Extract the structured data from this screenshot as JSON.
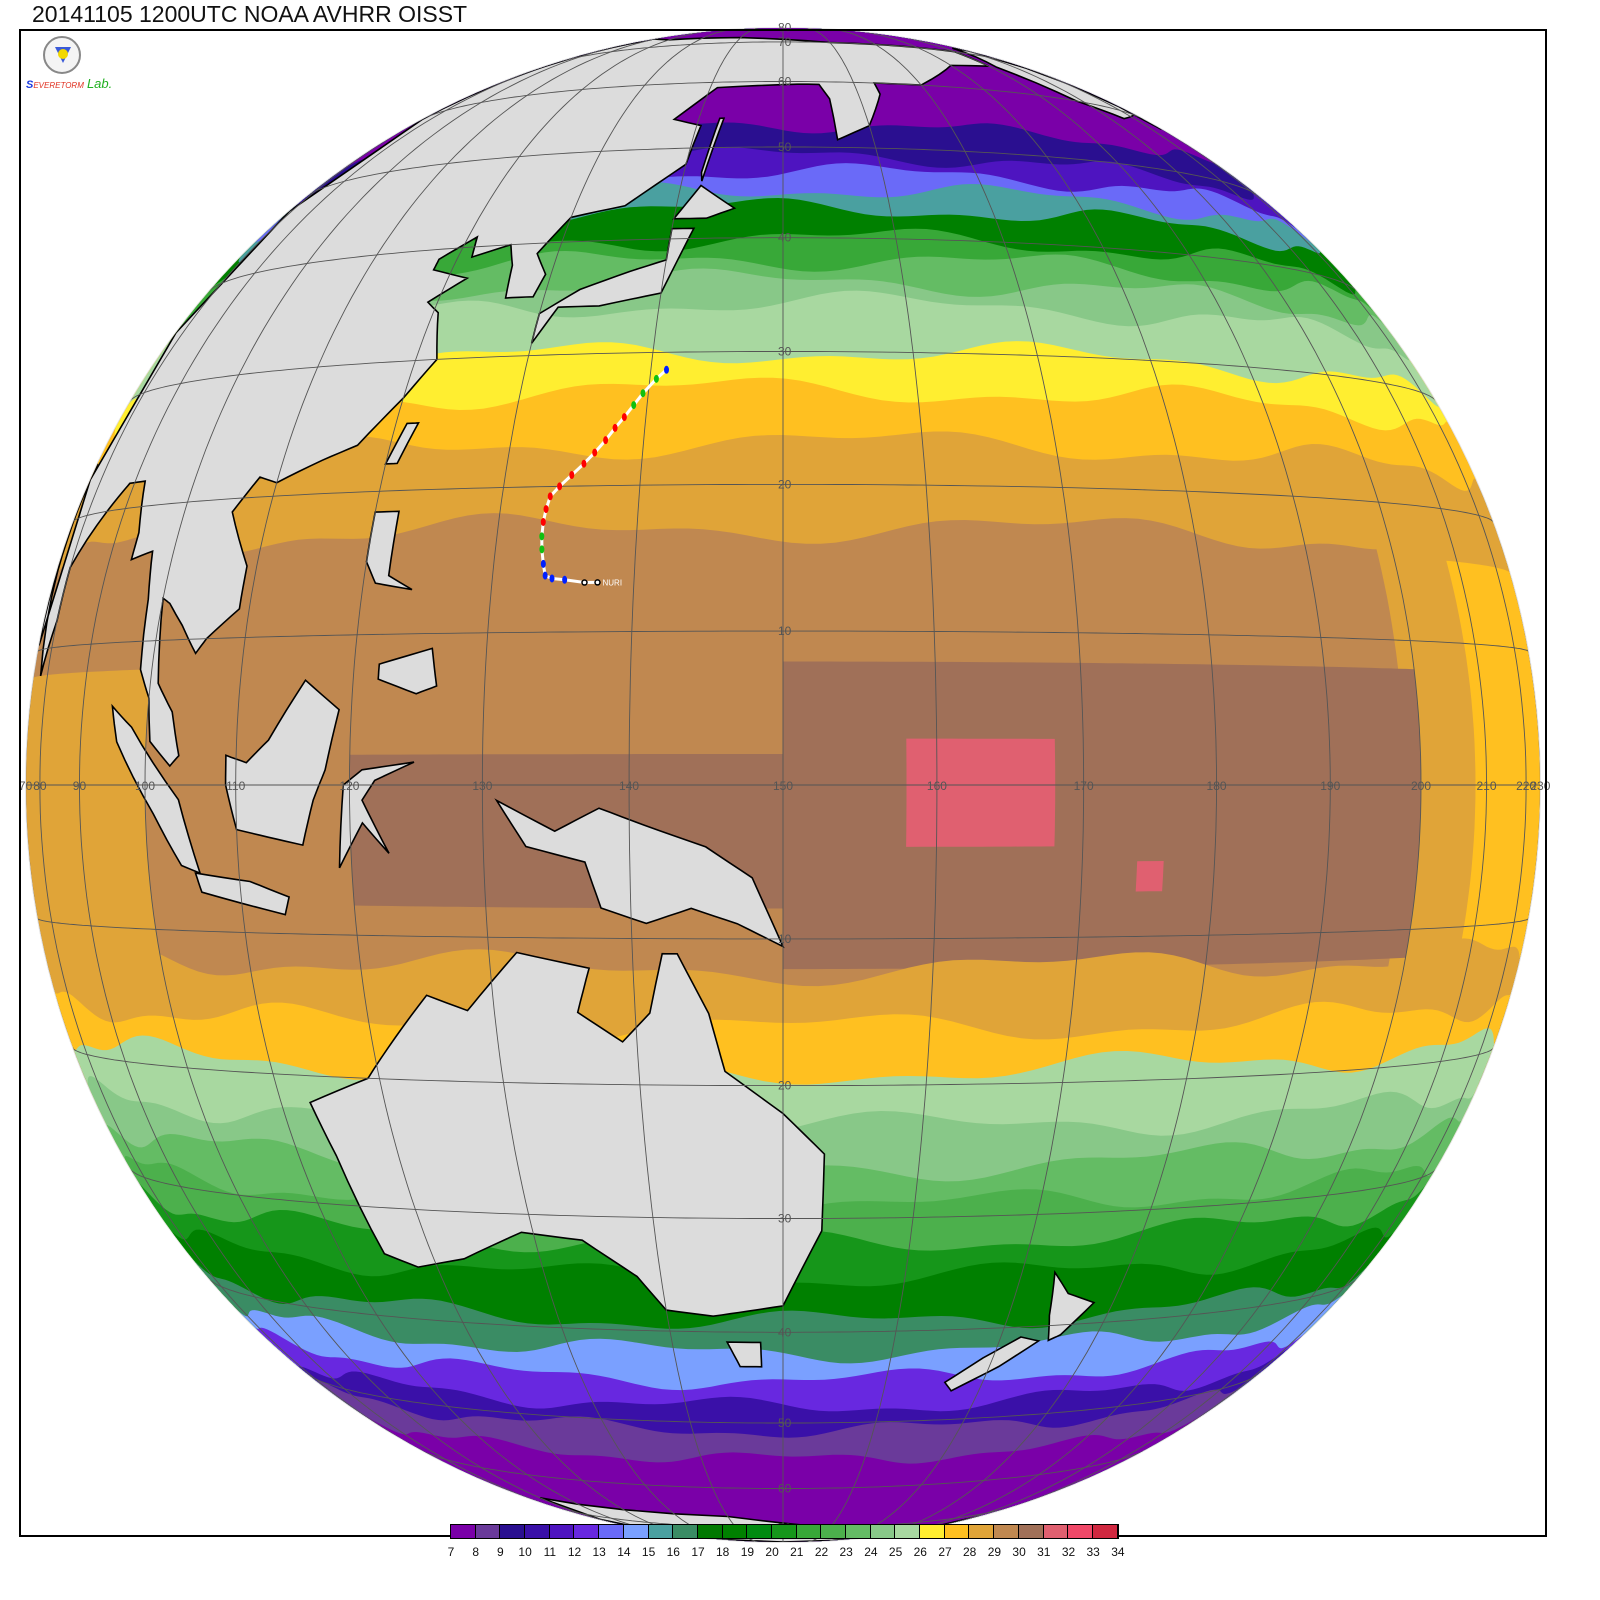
{
  "title": "20141105 1200UTC NOAA AVHRR OISST",
  "logo": {
    "line1": "S",
    "line2": "EVERE",
    "line3": "TORM",
    "line4": "Lab."
  },
  "colorbar": {
    "labels": [
      "7",
      "8",
      "9",
      "10",
      "11",
      "12",
      "13",
      "14",
      "15",
      "16",
      "17",
      "18",
      "19",
      "20",
      "21",
      "22",
      "23",
      "24",
      "25",
      "26",
      "27",
      "28",
      "29",
      "30",
      "31",
      "32",
      "33",
      "34"
    ],
    "colors": [
      "#7a00a8",
      "#6a3a9a",
      "#2a0f90",
      "#3a10a8",
      "#4e14c0",
      "#6828e0",
      "#6a6af8",
      "#7aa0ff",
      "#4aa0a0",
      "#3a8c64",
      "#007800",
      "#008000",
      "#008a10",
      "#16961a",
      "#38a838",
      "#4cb04c",
      "#64bc64",
      "#88c888",
      "#a8d8a0",
      "#ffee30",
      "#ffc020",
      "#e0a438",
      "#c08850",
      "#a07058",
      "#e06070",
      "#f04868",
      "#d02840"
    ]
  },
  "map": {
    "land_color": "#dcdcdc",
    "grid_color": "#555555",
    "lat_labels": [
      "80",
      "70",
      "60",
      "50",
      "40",
      "30",
      "20",
      "10",
      "10",
      "20",
      "30",
      "40",
      "50",
      "60",
      "70"
    ],
    "lat_values": [
      80,
      70,
      60,
      50,
      40,
      30,
      20,
      10,
      -10,
      -20,
      -30,
      -40,
      -50,
      -60,
      -70
    ],
    "lon_labels": [
      "70",
      "80",
      "90",
      "100",
      "110",
      "120",
      "130",
      "140",
      "150",
      "160",
      "170",
      "180",
      "190",
      "200",
      "210",
      "220",
      "230"
    ],
    "lon_values": [
      70,
      80,
      90,
      100,
      110,
      120,
      130,
      140,
      150,
      160,
      170,
      180,
      190,
      200,
      210,
      220,
      230
    ]
  },
  "track": {
    "name": "NURI",
    "points": [
      [
        137.5,
        13.3,
        "#000000"
      ],
      [
        136.6,
        13.3,
        "#000000"
      ],
      [
        135.2,
        13.5,
        "#0020ff"
      ],
      [
        134.3,
        13.6,
        "#0020ff"
      ],
      [
        133.8,
        13.8,
        "#0020ff"
      ],
      [
        133.6,
        14.6,
        "#0020ff"
      ],
      [
        133.4,
        15.6,
        "#10c010"
      ],
      [
        133.3,
        16.5,
        "#10c010"
      ],
      [
        133.3,
        17.5,
        "#ff0000"
      ],
      [
        133.4,
        18.4,
        "#ff0000"
      ],
      [
        133.6,
        19.3,
        "#ff0000"
      ],
      [
        134.2,
        20.0,
        "#ff0000"
      ],
      [
        135.0,
        20.8,
        "#ff0000"
      ],
      [
        135.8,
        21.6,
        "#ff0000"
      ],
      [
        136.5,
        22.4,
        "#ff0000"
      ],
      [
        137.2,
        23.3,
        "#ff0000"
      ],
      [
        137.8,
        24.2,
        "#ff0000"
      ],
      [
        138.4,
        25.0,
        "#ff0000"
      ],
      [
        139.0,
        25.9,
        "#10c010"
      ],
      [
        139.6,
        26.8,
        "#10c010"
      ],
      [
        140.5,
        27.9,
        "#10c010"
      ],
      [
        141.2,
        28.6,
        "#0020ff"
      ]
    ]
  }
}
